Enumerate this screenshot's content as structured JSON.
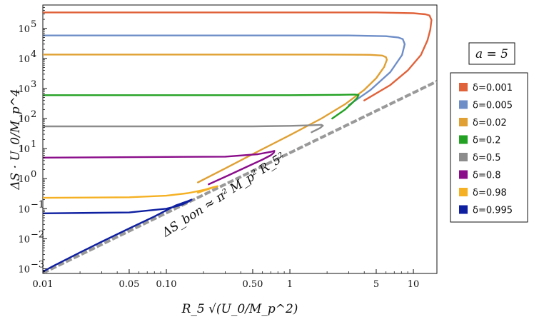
{
  "chart_data": {
    "type": "line",
    "title": "",
    "xlabel": "R_5 √(U_0/M_p^2)",
    "ylabel": "ΔS · U_0/M_p^4",
    "x_scale": "log",
    "y_scale": "log",
    "xlim": [
      0.01,
      15.5
    ],
    "ylim": [
      0.0007,
      600000
    ],
    "x_ticks": [
      {
        "value": 0.01,
        "label": "0.01"
      },
      {
        "value": 0.05,
        "label": "0.05"
      },
      {
        "value": 0.1,
        "label": "0.10"
      },
      {
        "value": 0.5,
        "label": "0.50"
      },
      {
        "value": 1,
        "label": "1"
      },
      {
        "value": 5,
        "label": "5"
      },
      {
        "value": 10,
        "label": "10"
      }
    ],
    "y_ticks": [
      {
        "value": 0.001,
        "base": "10",
        "exp": "−3"
      },
      {
        "value": 0.01,
        "base": "10",
        "exp": "−2"
      },
      {
        "value": 0.1,
        "base": "10",
        "exp": "−1"
      },
      {
        "value": 1,
        "base": "10",
        "exp": "0"
      },
      {
        "value": 10,
        "base": "10",
        "exp": "1"
      },
      {
        "value": 100,
        "base": "10",
        "exp": "2"
      },
      {
        "value": 1000,
        "base": "10",
        "exp": "3"
      },
      {
        "value": 10000,
        "base": "10",
        "exp": "4"
      },
      {
        "value": 100000,
        "base": "10",
        "exp": "5"
      }
    ],
    "grid": false,
    "legend_position": "right",
    "legend_title": "a = 5",
    "annotation": "ΔS_bon ≈ π² M_p² R_5²",
    "bound_line": {
      "color": "#999999",
      "x": [
        0.01,
        15.5
      ],
      "y": [
        0.00072,
        1730
      ]
    },
    "series": [
      {
        "name": "δ=0.001",
        "color": "#E0623A",
        "x": [
          0.01,
          5,
          10,
          12.5,
          13.5,
          14.0,
          13.7,
          13.0,
          11.5,
          9.0,
          6.5,
          4.0
        ],
        "y": [
          340000,
          340000,
          320000,
          295000,
          270000,
          190000,
          90000,
          40000,
          13000,
          4000,
          1300,
          400
        ]
      },
      {
        "name": "δ=0.005",
        "color": "#6E8EC8",
        "x": [
          0.01,
          3,
          6,
          7.5,
          8.2,
          8.5,
          8.1,
          6.5,
          4.5,
          3.0
        ],
        "y": [
          58000,
          58000,
          55000,
          50000,
          44000,
          30000,
          13000,
          3500,
          900,
          280
        ]
      },
      {
        "name": "δ=0.02",
        "color": "#E0A033",
        "x": [
          0.01,
          2,
          4.5,
          5.6,
          6.0,
          6.1,
          5.8,
          5.0,
          4.0,
          2.8,
          1.8,
          1.0,
          0.55,
          0.3,
          0.18
        ],
        "y": [
          13500,
          13500,
          13200,
          12500,
          11000,
          9000,
          5200,
          2200,
          900,
          300,
          100,
          28,
          8,
          2.2,
          0.75
        ]
      },
      {
        "name": "δ=0.2",
        "color": "#22A122",
        "x": [
          0.01,
          1.0,
          2.5,
          3.35,
          3.6,
          3.5,
          3.2,
          2.8,
          2.2
        ],
        "y": [
          600,
          600,
          615,
          630,
          610,
          480,
          330,
          200,
          100
        ]
      },
      {
        "name": "δ=0.5",
        "color": "#8C8C8C",
        "x": [
          0.01,
          0.5,
          1.0,
          1.5,
          1.8,
          1.85,
          1.75,
          1.5
        ],
        "y": [
          55,
          55,
          57,
          60,
          62,
          58,
          48,
          35
        ]
      },
      {
        "name": "δ=0.8",
        "color": "#8A0C8A",
        "x": [
          0.01,
          0.3,
          0.55,
          0.7,
          0.75,
          0.74,
          0.7,
          0.6,
          0.45,
          0.32,
          0.22
        ],
        "y": [
          5.0,
          5.4,
          6.5,
          7.8,
          8.4,
          7.2,
          6.0,
          4.3,
          2.5,
          1.3,
          0.65
        ]
      },
      {
        "name": "δ=0.98",
        "color": "#F5B123",
        "x": [
          0.01,
          0.05,
          0.1,
          0.15,
          0.2,
          0.24,
          0.26,
          0.23,
          0.18
        ],
        "y": [
          0.23,
          0.24,
          0.27,
          0.33,
          0.42,
          0.52,
          0.56,
          0.48,
          0.34
        ]
      },
      {
        "name": "δ=0.995",
        "color": "#0E1FA0",
        "x": [
          0.01,
          0.05,
          0.1,
          0.13,
          0.15,
          0.16,
          0.15,
          0.12,
          0.08,
          0.05,
          0.03,
          0.02,
          0.012,
          0.01
        ],
        "y": [
          0.07,
          0.075,
          0.1,
          0.13,
          0.17,
          0.2,
          0.18,
          0.13,
          0.055,
          0.022,
          0.008,
          0.0035,
          0.0012,
          0.0008
        ]
      }
    ]
  }
}
